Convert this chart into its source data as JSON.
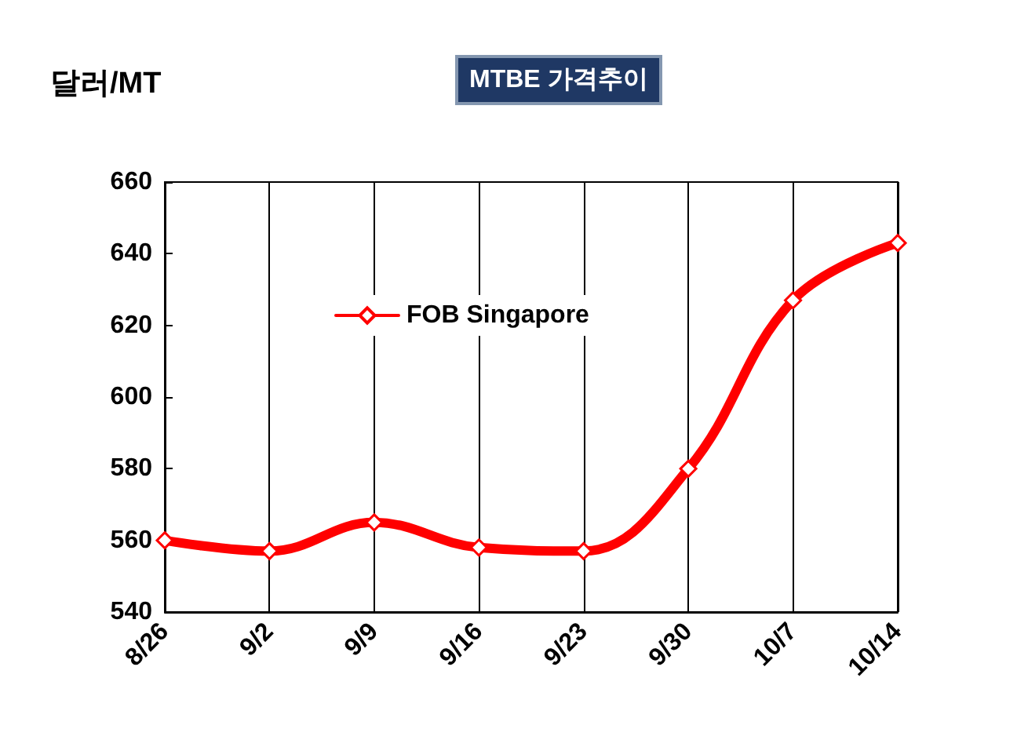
{
  "chart_data": {
    "type": "line",
    "title": "MTBE 가격추이",
    "ylabel": "달러/MT",
    "categories": [
      "8/26",
      "9/2",
      "9/9",
      "9/16",
      "9/23",
      "9/30",
      "10/7",
      "10/14"
    ],
    "series": [
      {
        "name": "FOB Singapore",
        "color": "#ff0000",
        "values": [
          560,
          557,
          565,
          558,
          557,
          580,
          627,
          643
        ]
      }
    ],
    "ylim": [
      540,
      660
    ],
    "yticks": [
      540,
      560,
      580,
      600,
      620,
      640,
      660
    ],
    "grid": "x",
    "legend": "top left",
    "marker": "diamond",
    "line_style": "solid"
  }
}
